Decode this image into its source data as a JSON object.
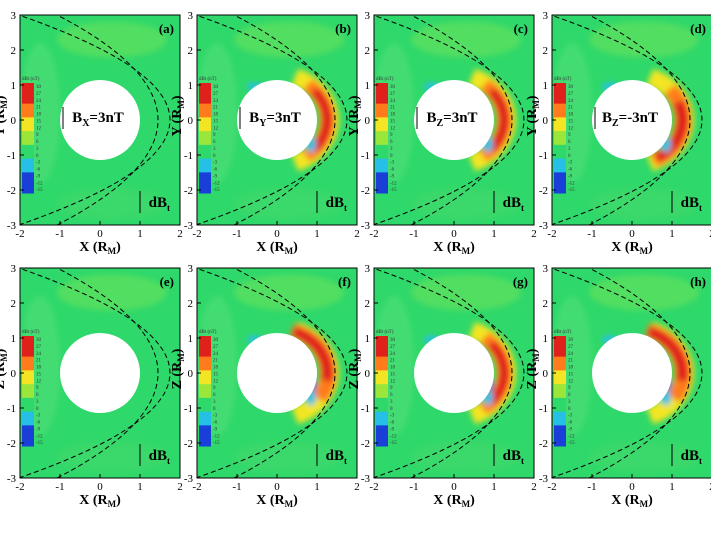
{
  "chart_data": [
    {
      "type": "heatmap",
      "panel": "(a)",
      "field_label": "BX=3nT",
      "field_sub": "X",
      "field_rest": "=3nT",
      "component_label": "dB",
      "component_sub": "t",
      "xlabel": "X",
      "xunit": "R",
      "xunit_sub": "M",
      "ylabel": "Y",
      "yunit": "R",
      "yunit_sub": "M",
      "xlim": [
        -2,
        2
      ],
      "ylim": [
        -3,
        3
      ],
      "xticks": [
        "-2",
        "-1",
        "0",
        "1",
        "2"
      ],
      "yticks": [
        "3",
        "2",
        "1",
        "0",
        "-1",
        "-2",
        "-3"
      ],
      "colorbar": {
        "title": "dBt (nT)",
        "ticks": [
          "30",
          "27",
          "24",
          "21",
          "18",
          "15",
          "12",
          "9",
          "6",
          "3",
          "0",
          "-3",
          "-6",
          "-9",
          "-12",
          "-15"
        ]
      },
      "peak_enhancement": "none",
      "obstacle_radius": 1.0
    },
    {
      "type": "heatmap",
      "panel": "(b)",
      "field_sub": "Y",
      "field_rest": "=3nT",
      "component_label": "dB",
      "component_sub": "t",
      "xlabel": "X",
      "xunit": "R",
      "xunit_sub": "M",
      "ylabel": "Y",
      "yunit": "R",
      "yunit_sub": "M",
      "xlim": [
        -2,
        2
      ],
      "ylim": [
        -3,
        3
      ],
      "xticks": [
        "-2",
        "-1",
        "0",
        "1",
        "2"
      ],
      "yticks": [
        "3",
        "2",
        "1",
        "0",
        "-1",
        "-2",
        "-3"
      ],
      "colorbar": {
        "title": "dBt (nT)",
        "ticks": [
          "30",
          "27",
          "24",
          "21",
          "18",
          "15",
          "12",
          "9",
          "6",
          "3",
          "0",
          "-3",
          "-6",
          "-9",
          "-12",
          "-15"
        ]
      },
      "peak_enhancement": "symmetric",
      "obstacle_radius": 1.0
    },
    {
      "type": "heatmap",
      "panel": "(c)",
      "field_sub": "Z",
      "field_rest": "=3nT",
      "component_label": "dB",
      "component_sub": "t",
      "xlabel": "X",
      "xunit": "R",
      "xunit_sub": "M",
      "ylabel": "Y",
      "yunit": "R",
      "yunit_sub": "M",
      "xlim": [
        -2,
        2
      ],
      "ylim": [
        -3,
        3
      ],
      "xticks": [
        "-2",
        "-1",
        "0",
        "1",
        "2"
      ],
      "yticks": [
        "3",
        "2",
        "1",
        "0",
        "-1",
        "-2",
        "-3"
      ],
      "colorbar": {
        "title": "dBt (nT)",
        "ticks": [
          "30",
          "27",
          "24",
          "21",
          "18",
          "15",
          "12",
          "9",
          "6",
          "3",
          "0",
          "-3",
          "-6",
          "-9",
          "-12",
          "-15"
        ]
      },
      "peak_enhancement": "symmetric",
      "obstacle_radius": 1.0
    },
    {
      "type": "heatmap",
      "panel": "(d)",
      "field_sub": "Z",
      "field_rest": "=-3nT",
      "component_label": "dB",
      "component_sub": "t",
      "xlabel": "X",
      "xunit": "R",
      "xunit_sub": "M",
      "ylabel": "Y",
      "yunit": "R",
      "yunit_sub": "M",
      "xlim": [
        -2,
        2
      ],
      "ylim": [
        -3,
        3
      ],
      "xticks": [
        "-2",
        "-1",
        "0",
        "1",
        "2"
      ],
      "yticks": [
        "3",
        "2",
        "1",
        "0",
        "-1",
        "-2",
        "-3"
      ],
      "colorbar": {
        "title": "dBt (nT)",
        "ticks": [
          "30",
          "27",
          "24",
          "21",
          "18",
          "15",
          "12",
          "9",
          "6",
          "3",
          "0",
          "-3",
          "-6",
          "-9",
          "-12",
          "-15"
        ]
      },
      "peak_enhancement": "southward-strong",
      "obstacle_radius": 1.0
    },
    {
      "type": "heatmap",
      "panel": "(e)",
      "component_label": "dB",
      "component_sub": "t",
      "xlabel": "X",
      "xunit": "R",
      "xunit_sub": "M",
      "ylabel": "Z",
      "yunit": "R",
      "yunit_sub": "M",
      "xlim": [
        -2,
        2
      ],
      "ylim": [
        -3,
        3
      ],
      "xticks": [
        "-2",
        "-1",
        "0",
        "1",
        "2"
      ],
      "yticks": [
        "3",
        "2",
        "1",
        "0",
        "-1",
        "-2",
        "-3"
      ],
      "colorbar": {
        "title": "dBt (nT)",
        "ticks": [
          "30",
          "27",
          "24",
          "21",
          "18",
          "15",
          "12",
          "9",
          "6",
          "3",
          "0",
          "-3",
          "-6",
          "-9",
          "-12",
          "-15"
        ]
      },
      "peak_enhancement": "none",
      "obstacle_radius": 1.0
    },
    {
      "type": "heatmap",
      "panel": "(f)",
      "component_label": "dB",
      "component_sub": "t",
      "xlabel": "X",
      "xunit": "R",
      "xunit_sub": "M",
      "ylabel": "Z",
      "yunit": "R",
      "yunit_sub": "M",
      "xlim": [
        -2,
        2
      ],
      "ylim": [
        -3,
        3
      ],
      "xticks": [
        "-2",
        "-1",
        "0",
        "1",
        "2"
      ],
      "yticks": [
        "3",
        "2",
        "1",
        "0",
        "-1",
        "-2",
        "-3"
      ],
      "colorbar": {
        "title": "dBt (nT)",
        "ticks": [
          "30",
          "27",
          "24",
          "21",
          "18",
          "15",
          "12",
          "9",
          "6",
          "3",
          "0",
          "-3",
          "-6",
          "-9",
          "-12",
          "-15"
        ]
      },
      "peak_enhancement": "northward-strong",
      "obstacle_radius": 1.0
    },
    {
      "type": "heatmap",
      "panel": "(g)",
      "component_label": "dB",
      "component_sub": "t",
      "xlabel": "X",
      "xunit": "R",
      "xunit_sub": "M",
      "ylabel": "Z",
      "yunit": "R",
      "yunit_sub": "M",
      "xlim": [
        -2,
        2
      ],
      "ylim": [
        -3,
        3
      ],
      "xticks": [
        "-2",
        "-1",
        "0",
        "1",
        "2"
      ],
      "yticks": [
        "3",
        "2",
        "1",
        "0",
        "-1",
        "-2",
        "-3"
      ],
      "colorbar": {
        "title": "dBt (nT)",
        "ticks": [
          "30",
          "27",
          "24",
          "21",
          "18",
          "15",
          "12",
          "9",
          "6",
          "3",
          "0",
          "-3",
          "-6",
          "-9",
          "-12",
          "-15"
        ]
      },
      "peak_enhancement": "symmetric",
      "obstacle_radius": 1.0
    },
    {
      "type": "heatmap",
      "panel": "(h)",
      "component_label": "dB",
      "component_sub": "t",
      "xlabel": "X",
      "xunit": "R",
      "xunit_sub": "M",
      "ylabel": "Z",
      "yunit": "R",
      "yunit_sub": "M",
      "xlim": [
        -2,
        2
      ],
      "ylim": [
        -3,
        3
      ],
      "xticks": [
        "-2",
        "-1",
        "0",
        "1",
        "2"
      ],
      "yticks": [
        "3",
        "2",
        "1",
        "0",
        "-1",
        "-2",
        "-3"
      ],
      "colorbar": {
        "title": "dBt (nT)",
        "ticks": [
          "30",
          "27",
          "24",
          "21",
          "18",
          "15",
          "12",
          "9",
          "6",
          "3",
          "0",
          "-3",
          "-6",
          "-9",
          "-12",
          "-15"
        ]
      },
      "peak_enhancement": "northward-strong",
      "obstacle_radius": 1.0
    }
  ],
  "colors": {
    "background": "#2fd86a",
    "peak": "#e0201a",
    "high": "#ff7b1c",
    "mid": "#f3e524",
    "low_pos": "#9be63a",
    "negative": "#26c0e6",
    "deep_negative": "#1a3fd8",
    "obstacle": "#ffffff"
  }
}
